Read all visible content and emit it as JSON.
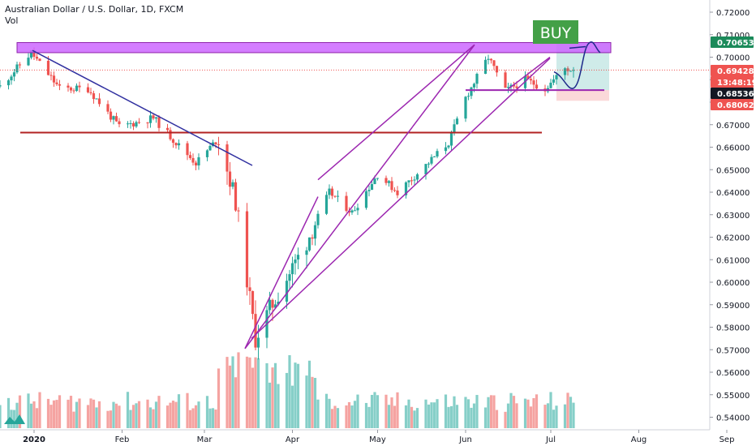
{
  "header": {
    "title": "Australian Dollar / U.S. Dollar, 1D, FXCM",
    "volume_label": "Vol"
  },
  "annotation": {
    "buy_label": "BUY"
  },
  "colors": {
    "up": "#26a69a",
    "down": "#ef5350",
    "up_vol": "#86cfc8",
    "down_vol": "#f5a3a1",
    "zone": "#cc66ff",
    "trend": "#9c27b0",
    "blue_line": "#3030a0",
    "red_line": "#b22222",
    "path": "#1e2a8a"
  },
  "price_badges": [
    {
      "value": "0.70653",
      "bg": "#1b8a5a"
    },
    {
      "value": "0.69428",
      "bg": "#ef5350"
    },
    {
      "value": "13:48:19",
      "bg": "#ef5350"
    },
    {
      "value": "0.68536",
      "bg": "#131722"
    },
    {
      "value": "0.68062",
      "bg": "#ef5350"
    }
  ],
  "chart_data": {
    "type": "candlestick",
    "symbol": "Australian Dollar / U.S. Dollar",
    "interval": "1D",
    "source": "FXCM",
    "y_ticks": [
      "0.72000",
      "0.71000",
      "0.70000",
      "0.69000",
      "0.68000",
      "0.67000",
      "0.66000",
      "0.65000",
      "0.64000",
      "0.63000",
      "0.62000",
      "0.61000",
      "0.60000",
      "0.59000",
      "0.58000",
      "0.57000",
      "0.56000",
      "0.55000",
      "0.54000"
    ],
    "y_range": [
      0.5375,
      0.7235
    ],
    "x_ticks": [
      "2020",
      "Feb",
      "Mar",
      "Apr",
      "May",
      "Jun",
      "Jul",
      "Aug",
      "Sep"
    ],
    "keypoints": [
      {
        "date": "2019-12-20",
        "close": 0.687
      },
      {
        "date": "2019-12-31",
        "close": 0.702
      },
      {
        "date": "2020-01-10",
        "close": 0.686
      },
      {
        "date": "2020-01-20",
        "close": 0.686
      },
      {
        "date": "2020-01-31",
        "close": 0.669
      },
      {
        "date": "2020-02-12",
        "close": 0.673
      },
      {
        "date": "2020-02-20",
        "close": 0.662
      },
      {
        "date": "2020-02-27",
        "close": 0.653
      },
      {
        "date": "2020-03-06",
        "close": 0.664
      },
      {
        "date": "2020-03-12",
        "close": 0.636
      },
      {
        "date": "2020-03-19",
        "close": 0.575
      },
      {
        "date": "2020-03-24",
        "close": 0.588
      },
      {
        "date": "2020-04-06",
        "close": 0.618
      },
      {
        "date": "2020-04-14",
        "close": 0.64
      },
      {
        "date": "2020-04-22",
        "close": 0.631
      },
      {
        "date": "2020-05-01",
        "close": 0.648
      },
      {
        "date": "2020-05-08",
        "close": 0.64
      },
      {
        "date": "2020-05-18",
        "close": 0.652
      },
      {
        "date": "2020-05-26",
        "close": 0.662
      },
      {
        "date": "2020-06-01",
        "close": 0.682
      },
      {
        "date": "2020-06-09",
        "close": 0.7
      },
      {
        "date": "2020-06-15",
        "close": 0.685
      },
      {
        "date": "2020-06-22",
        "close": 0.69
      },
      {
        "date": "2020-06-29",
        "close": 0.686
      },
      {
        "date": "2020-07-06",
        "close": 0.695
      },
      {
        "date": "2020-07-09",
        "close": 0.6943
      }
    ],
    "levels": {
      "resistance_zone": [
        0.702,
        0.7065
      ],
      "support_line": 0.6665,
      "current_price": 0.69428,
      "target": 0.70653,
      "stop": 0.68062,
      "entry_line": 0.68536
    }
  }
}
